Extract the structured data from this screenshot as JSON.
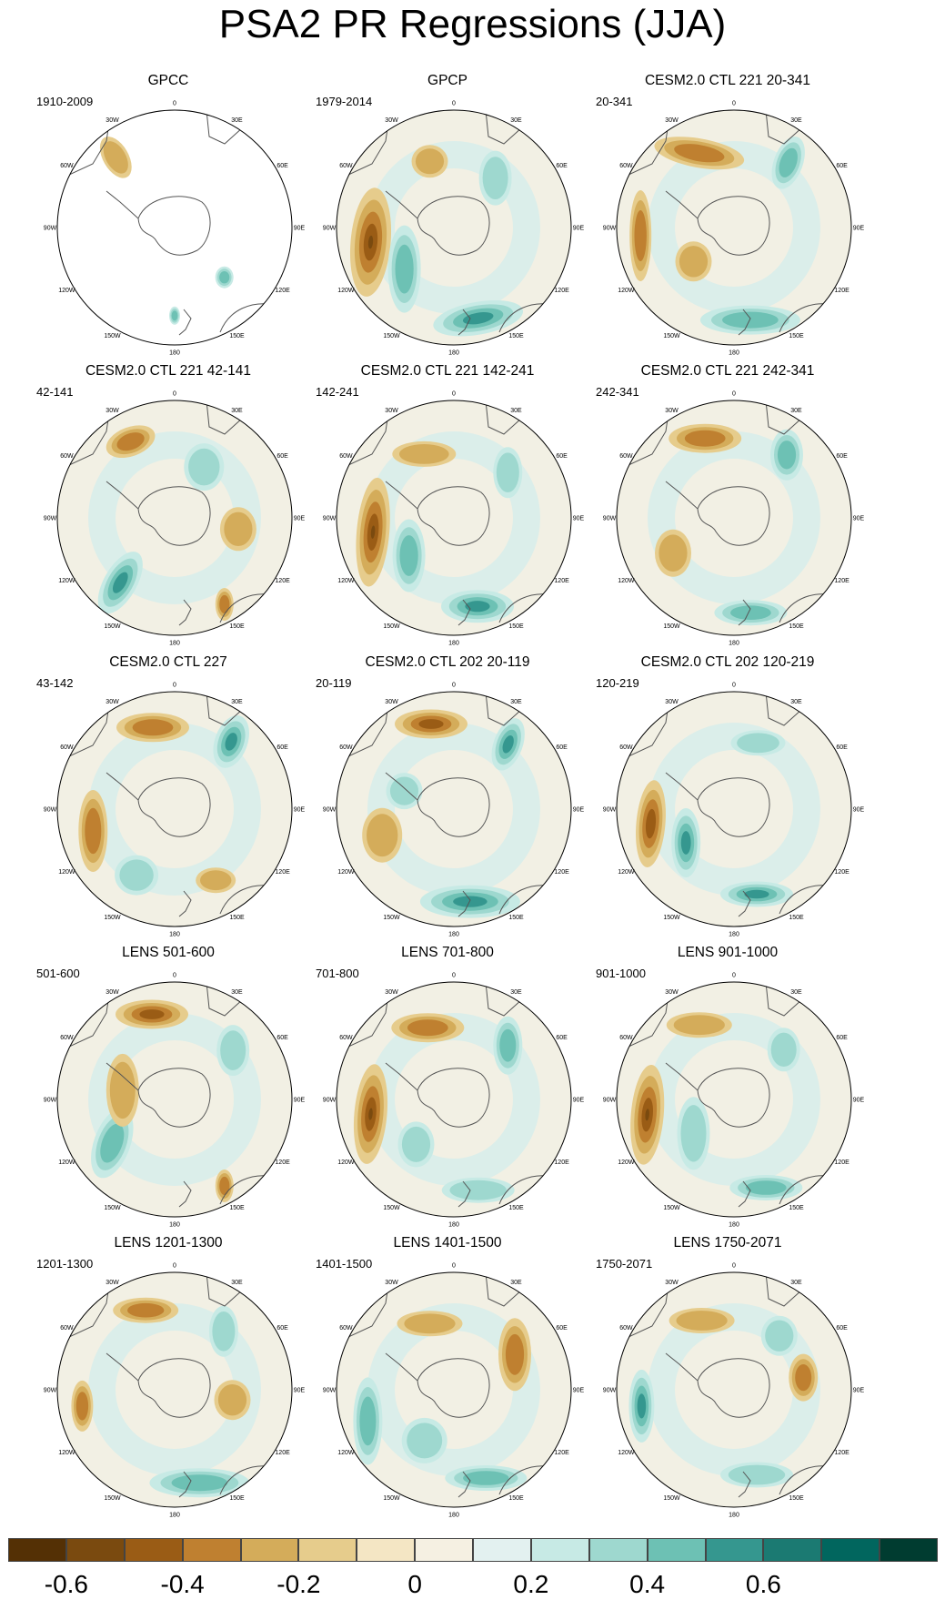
{
  "title": "PSA2 PR Regressions (JJA)",
  "panels": [
    {
      "title": "GPCC",
      "period": "1910-2009"
    },
    {
      "title": "GPCP",
      "period": "1979-2014"
    },
    {
      "title": "CESM2.0 CTL 221 20-341",
      "period": "20-341"
    },
    {
      "title": "CESM2.0 CTL 221 42-141",
      "period": "42-141"
    },
    {
      "title": "CESM2.0 CTL 221 142-241",
      "period": "142-241"
    },
    {
      "title": "CESM2.0 CTL 221 242-341",
      "period": "242-341"
    },
    {
      "title": "CESM2.0 CTL 227",
      "period": "43-142"
    },
    {
      "title": "CESM2.0 CTL 202 20-119",
      "period": "20-119"
    },
    {
      "title": "CESM2.0 CTL 202 120-219",
      "period": "120-219"
    },
    {
      "title": "LENS 501-600",
      "period": "501-600"
    },
    {
      "title": "LENS 701-800",
      "period": "701-800"
    },
    {
      "title": "LENS 901-1000",
      "period": "901-1000"
    },
    {
      "title": "LENS 1201-1300",
      "period": "1201-1300"
    },
    {
      "title": "LENS 1401-1500",
      "period": "1401-1500"
    },
    {
      "title": "LENS 1750-2071",
      "period": "1750-2071"
    }
  ],
  "longitude_labels": [
    "0",
    "30E",
    "60E",
    "90E",
    "120E",
    "150E",
    "180",
    "150W",
    "120W",
    "90W",
    "60W",
    "30W"
  ],
  "colorbar": {
    "colors": [
      "#543005",
      "#7a4a0f",
      "#9a5c15",
      "#bf8030",
      "#d4ac5a",
      "#e6cc8c",
      "#f4e6c4",
      "#f5f0e2",
      "#e3f1f0",
      "#c7eae5",
      "#9ed8cf",
      "#6dc1b4",
      "#35978f",
      "#1b7a72",
      "#01665e",
      "#003c30"
    ],
    "labels": [
      "-0.6",
      "-0.4",
      "-0.2",
      "0",
      "0.2",
      "0.4",
      "0.6"
    ]
  }
}
